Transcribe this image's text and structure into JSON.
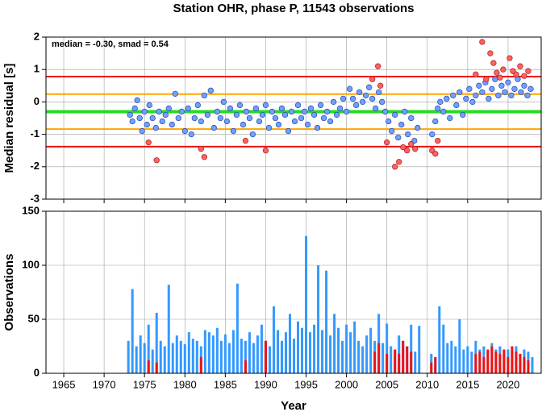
{
  "chart_data": [
    {
      "type": "scatter",
      "title": "Station OHR, phase P, 11543 observations",
      "ylabel": "Median residual [s]",
      "annotation": "median = -0.30, smad = 0.54",
      "xlim": [
        1962.8,
        2024.1
      ],
      "ylim": [
        -3,
        2
      ],
      "xticks": [
        1965,
        1970,
        1975,
        1980,
        1985,
        1990,
        1995,
        2000,
        2005,
        2010,
        2015,
        2020
      ],
      "yticks": [
        -3,
        -2,
        -1,
        0,
        1,
        2
      ],
      "grid": true,
      "reference_lines": [
        {
          "value": 0.78,
          "color": "#ee1111"
        },
        {
          "value": 0.24,
          "color": "#ffa500"
        },
        {
          "value": -0.3,
          "color": "#22dd22"
        },
        {
          "value": -0.84,
          "color": "#ffa500"
        },
        {
          "value": -1.38,
          "color": "#ee1111"
        }
      ],
      "series": [
        {
          "color": "#6fa0ff",
          "x": [
            1973.2,
            1973.5,
            1973.8,
            1974.1,
            1974.4,
            1974.7,
            1975.0,
            1975.3,
            1975.6,
            1976.0,
            1976.4,
            1976.8,
            1977.2,
            1977.6,
            1978.0,
            1978.4,
            1978.8,
            1979.2,
            1979.6,
            1980.0,
            1980.4,
            1980.8,
            1981.2,
            1981.6,
            1982.0,
            1982.4,
            1982.8,
            1983.2,
            1983.6,
            1984.0,
            1984.4,
            1984.8,
            1985.2,
            1985.6,
            1986.0,
            1986.4,
            1986.8,
            1987.2,
            1987.6,
            1988.0,
            1988.4,
            1988.8,
            1989.2,
            1989.6,
            1990.0,
            1990.4,
            1990.8,
            1991.2,
            1991.6,
            1992.0,
            1992.4,
            1992.8,
            1993.2,
            1993.6,
            1994.0,
            1994.4,
            1994.8,
            1995.2,
            1995.6,
            1996.0,
            1996.4,
            1996.8,
            1997.2,
            1997.6,
            1998.0,
            1998.4,
            1998.8,
            1999.2,
            1999.6,
            2000.0,
            2000.4,
            2000.8,
            2001.2,
            2001.6,
            2002.0,
            2002.4,
            2002.8,
            2003.2,
            2003.6,
            2004.0,
            2004.4,
            2004.8,
            2005.2,
            2005.6,
            2006.0,
            2006.4,
            2006.8,
            2007.2,
            2007.6,
            2008.0,
            2008.4,
            2008.8,
            2010.6,
            2011.0,
            2011.3,
            2011.6,
            2012.0,
            2012.4,
            2012.8,
            2013.2,
            2013.6,
            2014.0,
            2014.4,
            2014.8,
            2015.2,
            2015.6,
            2016.0,
            2016.4,
            2016.8,
            2017.2,
            2017.6,
            2018.0,
            2018.4,
            2018.8,
            2019.2,
            2019.6,
            2020.0,
            2020.4,
            2020.8,
            2021.2,
            2021.6,
            2022.0,
            2022.4,
            2022.8
          ],
          "values": [
            -0.4,
            -0.6,
            -0.2,
            0.05,
            -0.5,
            -0.9,
            -0.3,
            -0.7,
            -0.1,
            -0.5,
            -0.8,
            -0.3,
            -0.6,
            -0.4,
            -0.2,
            -0.7,
            0.25,
            -0.5,
            -0.3,
            -0.9,
            -0.2,
            -1.0,
            -0.5,
            -0.1,
            -0.6,
            0.2,
            -0.4,
            0.35,
            -0.8,
            -0.3,
            -0.5,
            0.0,
            -0.6,
            -0.2,
            -0.9,
            -0.4,
            -0.1,
            -0.7,
            -0.3,
            -0.5,
            -1.0,
            -0.2,
            -0.6,
            -0.4,
            -0.1,
            -0.8,
            -0.3,
            -0.5,
            -0.7,
            -0.2,
            -0.4,
            -0.9,
            -0.3,
            -0.6,
            -0.1,
            -0.5,
            -0.3,
            -0.7,
            -0.2,
            -0.4,
            -0.8,
            -0.1,
            -0.5,
            -0.3,
            -0.6,
            0.0,
            -0.4,
            -0.2,
            0.1,
            -0.3,
            0.4,
            0.1,
            -0.1,
            0.3,
            0.0,
            0.2,
            0.45,
            0.1,
            -0.2,
            0.3,
            0.0,
            -0.3,
            -0.6,
            -0.9,
            -0.4,
            -1.1,
            -0.7,
            -0.3,
            -1.0,
            -0.5,
            -1.2,
            -0.8,
            -1.0,
            -0.6,
            -0.2,
            0.0,
            -0.3,
            0.1,
            -0.5,
            0.2,
            -0.1,
            0.3,
            -0.4,
            0.1,
            0.4,
            0.0,
            0.2,
            0.5,
            0.3,
            0.6,
            0.1,
            0.4,
            0.7,
            0.2,
            0.5,
            0.3,
            0.6,
            0.2,
            0.4,
            0.7,
            0.3,
            0.5,
            0.2,
            0.4
          ]
        },
        {
          "color": "#ff6060",
          "x": [
            1975.5,
            1976.5,
            1982.0,
            1982.4,
            1987.5,
            1990.0,
            2003.2,
            2003.9,
            2004.2,
            2005.0,
            2006.0,
            2006.5,
            2007.0,
            2007.5,
            2008.0,
            2008.5,
            2010.6,
            2011.0,
            2011.3,
            2016.0,
            2016.8,
            2017.3,
            2017.8,
            2018.2,
            2018.6,
            2019.0,
            2019.4,
            2020.2,
            2020.6,
            2021.0,
            2021.5,
            2022.0,
            2022.5
          ],
          "values": [
            -1.25,
            -1.8,
            -1.45,
            -1.7,
            -1.2,
            -1.5,
            0.7,
            1.1,
            0.5,
            -1.25,
            -2.0,
            -1.85,
            -1.4,
            -1.5,
            -1.3,
            -1.45,
            -1.5,
            -1.6,
            -1.2,
            0.85,
            1.85,
            0.7,
            1.5,
            1.2,
            0.9,
            0.75,
            1.0,
            1.35,
            0.95,
            0.85,
            1.1,
            0.8,
            0.95
          ]
        }
      ]
    },
    {
      "type": "bar",
      "ylabel": "Observations",
      "xlabel": "Year",
      "xlim": [
        1962.8,
        2024.1
      ],
      "ylim": [
        0,
        150
      ],
      "xticks": [
        1965,
        1970,
        1975,
        1980,
        1985,
        1990,
        1995,
        2000,
        2005,
        2010,
        2015,
        2020
      ],
      "yticks": [
        0,
        50,
        100,
        150
      ],
      "grid": true,
      "series": [
        {
          "color": "#3399ff",
          "x": [
            1973.0,
            1973.5,
            1974.0,
            1974.5,
            1975.0,
            1975.5,
            1976.0,
            1976.5,
            1977.0,
            1977.5,
            1978.0,
            1978.5,
            1979.0,
            1979.5,
            1980.0,
            1980.5,
            1981.0,
            1981.5,
            1982.0,
            1982.5,
            1983.0,
            1983.5,
            1984.0,
            1984.5,
            1985.0,
            1985.5,
            1986.0,
            1986.5,
            1987.0,
            1987.5,
            1988.0,
            1988.5,
            1989.0,
            1989.5,
            1990.0,
            1990.5,
            1991.0,
            1991.5,
            1992.0,
            1992.5,
            1993.0,
            1993.5,
            1994.0,
            1994.5,
            1995.0,
            1995.5,
            1996.0,
            1996.5,
            1997.0,
            1997.5,
            1998.0,
            1998.5,
            1999.0,
            1999.5,
            2000.0,
            2000.5,
            2001.0,
            2001.5,
            2002.0,
            2002.5,
            2003.0,
            2003.5,
            2004.0,
            2004.5,
            2005.0,
            2005.5,
            2006.0,
            2006.5,
            2007.0,
            2007.5,
            2008.0,
            2008.5,
            2009.0,
            2010.5,
            2011.0,
            2011.5,
            2012.0,
            2012.5,
            2013.0,
            2013.5,
            2014.0,
            2014.5,
            2015.0,
            2015.5,
            2016.0,
            2016.5,
            2017.0,
            2017.5,
            2018.0,
            2018.5,
            2019.0,
            2019.5,
            2020.0,
            2020.5,
            2021.0,
            2021.5,
            2022.0,
            2022.5,
            2023.0
          ],
          "values": [
            30,
            78,
            25,
            35,
            28,
            45,
            22,
            56,
            30,
            25,
            82,
            28,
            35,
            30,
            27,
            38,
            32,
            30,
            25,
            40,
            38,
            35,
            42,
            30,
            36,
            28,
            40,
            83,
            32,
            30,
            38,
            28,
            35,
            45,
            30,
            25,
            62,
            40,
            30,
            38,
            55,
            32,
            48,
            42,
            127,
            38,
            45,
            100,
            40,
            95,
            35,
            55,
            42,
            30,
            45,
            38,
            48,
            30,
            25,
            35,
            42,
            30,
            55,
            28,
            46,
            25,
            20,
            35,
            30,
            25,
            45,
            20,
            44,
            18,
            15,
            62,
            45,
            28,
            30,
            25,
            50,
            22,
            25,
            20,
            30,
            22,
            25,
            20,
            28,
            22,
            25,
            18,
            22,
            20,
            25,
            18,
            22,
            20,
            15
          ]
        },
        {
          "color": "#ee1111",
          "x": [
            1975.5,
            1976.5,
            1982.0,
            1987.5,
            1990.0,
            2003.5,
            2004.0,
            2005.0,
            2006.0,
            2006.5,
            2007.0,
            2007.5,
            2008.0,
            2010.5,
            2011.0,
            2016.0,
            2016.5,
            2017.0,
            2017.5,
            2018.0,
            2018.5,
            2019.0,
            2019.5,
            2020.0,
            2020.5,
            2021.0,
            2021.5,
            2022.0,
            2022.5
          ],
          "values": [
            12,
            10,
            15,
            12,
            30,
            20,
            28,
            18,
            22,
            18,
            30,
            25,
            20,
            10,
            15,
            18,
            20,
            15,
            22,
            25,
            20,
            18,
            22,
            15,
            25,
            20,
            18,
            15,
            12
          ]
        }
      ]
    }
  ]
}
